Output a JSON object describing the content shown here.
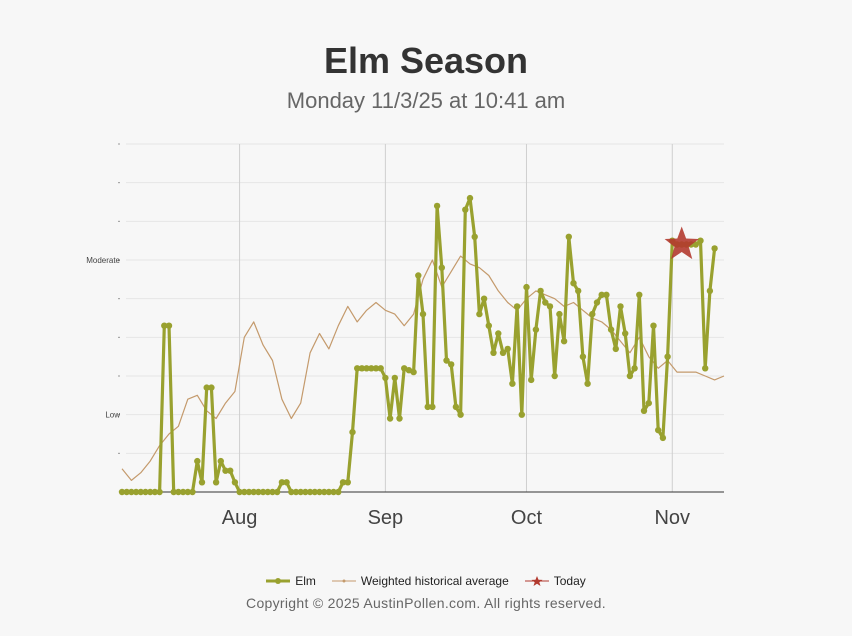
{
  "title": "Elm Season",
  "subtitle": "Monday 11/3/25 at 10:41 am",
  "legend": {
    "series1": "Elm",
    "series2": "Weighted historical average",
    "series3": "Today"
  },
  "copyright": "Copyright © 2025 AustinPollen.com.  All rights reserved.",
  "colors": {
    "elm": "#99a12f",
    "average": "#c49a6c",
    "today": "#b23a2f",
    "grid": "#e6e6e6",
    "month_line": "#cfcfcf",
    "axis": "#333333"
  },
  "chart_data": {
    "type": "line",
    "title": "Elm Season",
    "subtitle": "Monday 11/3/25 at 10:41 am",
    "x_type": "date",
    "x_range": [
      "2025-07-07",
      "2025-11-12"
    ],
    "y_range": [
      0,
      9
    ],
    "y_labels": [
      {
        "value": 2,
        "label": "Low"
      },
      {
        "value": 6,
        "label": "Moderate"
      }
    ],
    "x_tick_labels": [
      {
        "date": "2025-08-01",
        "label": "Aug"
      },
      {
        "date": "2025-09-01",
        "label": "Sep"
      },
      {
        "date": "2025-10-01",
        "label": "Oct"
      },
      {
        "date": "2025-11-01",
        "label": "Nov"
      }
    ],
    "series": [
      {
        "name": "Elm",
        "points": [
          [
            "2025-07-07",
            0
          ],
          [
            "2025-07-08",
            0
          ],
          [
            "2025-07-09",
            0
          ],
          [
            "2025-07-10",
            0
          ],
          [
            "2025-07-11",
            0
          ],
          [
            "2025-07-12",
            0
          ],
          [
            "2025-07-13",
            0
          ],
          [
            "2025-07-14",
            0
          ],
          [
            "2025-07-15",
            0
          ],
          [
            "2025-07-16",
            4.3
          ],
          [
            "2025-07-17",
            4.3
          ],
          [
            "2025-07-18",
            0
          ],
          [
            "2025-07-19",
            0
          ],
          [
            "2025-07-20",
            0
          ],
          [
            "2025-07-21",
            0
          ],
          [
            "2025-07-22",
            0
          ],
          [
            "2025-07-23",
            0.8
          ],
          [
            "2025-07-24",
            0.25
          ],
          [
            "2025-07-25",
            2.7
          ],
          [
            "2025-07-26",
            2.7
          ],
          [
            "2025-07-27",
            0.25
          ],
          [
            "2025-07-28",
            0.8
          ],
          [
            "2025-07-29",
            0.55
          ],
          [
            "2025-07-30",
            0.55
          ],
          [
            "2025-07-31",
            0.25
          ],
          [
            "2025-08-01",
            0
          ],
          [
            "2025-08-02",
            0
          ],
          [
            "2025-08-03",
            0
          ],
          [
            "2025-08-04",
            0
          ],
          [
            "2025-08-05",
            0
          ],
          [
            "2025-08-06",
            0
          ],
          [
            "2025-08-07",
            0
          ],
          [
            "2025-08-08",
            0
          ],
          [
            "2025-08-09",
            0
          ],
          [
            "2025-08-10",
            0.25
          ],
          [
            "2025-08-11",
            0.25
          ],
          [
            "2025-08-12",
            0
          ],
          [
            "2025-08-13",
            0
          ],
          [
            "2025-08-14",
            0
          ],
          [
            "2025-08-15",
            0
          ],
          [
            "2025-08-16",
            0
          ],
          [
            "2025-08-17",
            0
          ],
          [
            "2025-08-18",
            0
          ],
          [
            "2025-08-19",
            0
          ],
          [
            "2025-08-20",
            0
          ],
          [
            "2025-08-21",
            0
          ],
          [
            "2025-08-22",
            0
          ],
          [
            "2025-08-23",
            0.25
          ],
          [
            "2025-08-24",
            0.25
          ],
          [
            "2025-08-25",
            1.55
          ],
          [
            "2025-08-26",
            3.2
          ],
          [
            "2025-08-27",
            3.2
          ],
          [
            "2025-08-28",
            3.2
          ],
          [
            "2025-08-29",
            3.2
          ],
          [
            "2025-08-30",
            3.2
          ],
          [
            "2025-08-31",
            3.2
          ],
          [
            "2025-09-01",
            2.95
          ],
          [
            "2025-09-02",
            1.9
          ],
          [
            "2025-09-03",
            2.95
          ],
          [
            "2025-09-04",
            1.9
          ],
          [
            "2025-09-05",
            3.2
          ],
          [
            "2025-09-06",
            3.15
          ],
          [
            "2025-09-07",
            3.1
          ],
          [
            "2025-09-08",
            5.6
          ],
          [
            "2025-09-09",
            4.6
          ],
          [
            "2025-09-10",
            2.2
          ],
          [
            "2025-09-11",
            2.2
          ],
          [
            "2025-09-12",
            7.4
          ],
          [
            "2025-09-13",
            5.8
          ],
          [
            "2025-09-14",
            3.4
          ],
          [
            "2025-09-15",
            3.3
          ],
          [
            "2025-09-16",
            2.2
          ],
          [
            "2025-09-17",
            2.0
          ],
          [
            "2025-09-18",
            7.3
          ],
          [
            "2025-09-19",
            7.6
          ],
          [
            "2025-09-20",
            6.6
          ],
          [
            "2025-09-21",
            4.6
          ],
          [
            "2025-09-22",
            5.0
          ],
          [
            "2025-09-23",
            4.3
          ],
          [
            "2025-09-24",
            3.6
          ],
          [
            "2025-09-25",
            4.1
          ],
          [
            "2025-09-26",
            3.6
          ],
          [
            "2025-09-27",
            3.7
          ],
          [
            "2025-09-28",
            2.8
          ],
          [
            "2025-09-29",
            4.8
          ],
          [
            "2025-09-30",
            2.0
          ],
          [
            "2025-10-01",
            5.3
          ],
          [
            "2025-10-02",
            2.9
          ],
          [
            "2025-10-03",
            4.2
          ],
          [
            "2025-10-04",
            5.2
          ],
          [
            "2025-10-05",
            4.9
          ],
          [
            "2025-10-06",
            4.8
          ],
          [
            "2025-10-07",
            3.0
          ],
          [
            "2025-10-08",
            4.6
          ],
          [
            "2025-10-09",
            3.9
          ],
          [
            "2025-10-10",
            6.6
          ],
          [
            "2025-10-11",
            5.4
          ],
          [
            "2025-10-12",
            5.2
          ],
          [
            "2025-10-13",
            3.5
          ],
          [
            "2025-10-14",
            2.8
          ],
          [
            "2025-10-15",
            4.6
          ],
          [
            "2025-10-16",
            4.9
          ],
          [
            "2025-10-17",
            5.1
          ],
          [
            "2025-10-18",
            5.1
          ],
          [
            "2025-10-19",
            4.2
          ],
          [
            "2025-10-20",
            3.7
          ],
          [
            "2025-10-21",
            4.8
          ],
          [
            "2025-10-22",
            4.1
          ],
          [
            "2025-10-23",
            3.0
          ],
          [
            "2025-10-24",
            3.2
          ],
          [
            "2025-10-25",
            5.1
          ],
          [
            "2025-10-26",
            2.1
          ],
          [
            "2025-10-27",
            2.3
          ],
          [
            "2025-10-28",
            4.3
          ],
          [
            "2025-10-29",
            1.6
          ],
          [
            "2025-10-30",
            1.4
          ],
          [
            "2025-10-31",
            3.5
          ],
          [
            "2025-11-01",
            6.5
          ],
          [
            "2025-11-02",
            6.4
          ],
          [
            "2025-11-03",
            6.4
          ],
          [
            "2025-11-04",
            6.4
          ],
          [
            "2025-11-05",
            6.4
          ],
          [
            "2025-11-06",
            6.4
          ],
          [
            "2025-11-07",
            6.5
          ],
          [
            "2025-11-08",
            3.2
          ],
          [
            "2025-11-09",
            5.2
          ],
          [
            "2025-11-10",
            6.3
          ]
        ]
      },
      {
        "name": "Weighted historical average",
        "points": [
          [
            "2025-07-07",
            0.6
          ],
          [
            "2025-07-09",
            0.3
          ],
          [
            "2025-07-11",
            0.5
          ],
          [
            "2025-07-13",
            0.8
          ],
          [
            "2025-07-15",
            1.2
          ],
          [
            "2025-07-17",
            1.5
          ],
          [
            "2025-07-19",
            1.7
          ],
          [
            "2025-07-21",
            2.4
          ],
          [
            "2025-07-23",
            2.5
          ],
          [
            "2025-07-25",
            2.1
          ],
          [
            "2025-07-27",
            1.9
          ],
          [
            "2025-07-29",
            2.3
          ],
          [
            "2025-07-31",
            2.6
          ],
          [
            "2025-08-02",
            4.0
          ],
          [
            "2025-08-04",
            4.4
          ],
          [
            "2025-08-06",
            3.8
          ],
          [
            "2025-08-08",
            3.4
          ],
          [
            "2025-08-10",
            2.4
          ],
          [
            "2025-08-12",
            1.9
          ],
          [
            "2025-08-14",
            2.3
          ],
          [
            "2025-08-16",
            3.6
          ],
          [
            "2025-08-18",
            4.1
          ],
          [
            "2025-08-20",
            3.7
          ],
          [
            "2025-08-22",
            4.3
          ],
          [
            "2025-08-24",
            4.8
          ],
          [
            "2025-08-26",
            4.4
          ],
          [
            "2025-08-28",
            4.7
          ],
          [
            "2025-08-30",
            4.9
          ],
          [
            "2025-09-01",
            4.7
          ],
          [
            "2025-09-03",
            4.6
          ],
          [
            "2025-09-05",
            4.3
          ],
          [
            "2025-09-07",
            4.6
          ],
          [
            "2025-09-09",
            5.5
          ],
          [
            "2025-09-11",
            6.0
          ],
          [
            "2025-09-13",
            5.3
          ],
          [
            "2025-09-15",
            5.7
          ],
          [
            "2025-09-17",
            6.1
          ],
          [
            "2025-09-19",
            5.9
          ],
          [
            "2025-09-21",
            5.8
          ],
          [
            "2025-09-23",
            5.6
          ],
          [
            "2025-09-25",
            5.2
          ],
          [
            "2025-09-27",
            4.9
          ],
          [
            "2025-09-29",
            4.7
          ],
          [
            "2025-10-01",
            5.0
          ],
          [
            "2025-10-03",
            5.2
          ],
          [
            "2025-10-05",
            5.1
          ],
          [
            "2025-10-07",
            5.0
          ],
          [
            "2025-10-09",
            4.8
          ],
          [
            "2025-10-11",
            4.9
          ],
          [
            "2025-10-13",
            4.7
          ],
          [
            "2025-10-15",
            4.5
          ],
          [
            "2025-10-17",
            4.4
          ],
          [
            "2025-10-19",
            4.2
          ],
          [
            "2025-10-21",
            3.9
          ],
          [
            "2025-10-23",
            3.6
          ],
          [
            "2025-10-25",
            4.0
          ],
          [
            "2025-10-27",
            3.5
          ],
          [
            "2025-10-29",
            3.2
          ],
          [
            "2025-10-31",
            3.4
          ],
          [
            "2025-11-02",
            3.1
          ],
          [
            "2025-11-04",
            3.1
          ],
          [
            "2025-11-06",
            3.1
          ],
          [
            "2025-11-08",
            3.0
          ],
          [
            "2025-11-10",
            2.9
          ],
          [
            "2025-11-12",
            3.0
          ]
        ]
      },
      {
        "name": "Today",
        "points": [
          [
            "2025-11-03",
            6.4
          ]
        ]
      }
    ]
  }
}
